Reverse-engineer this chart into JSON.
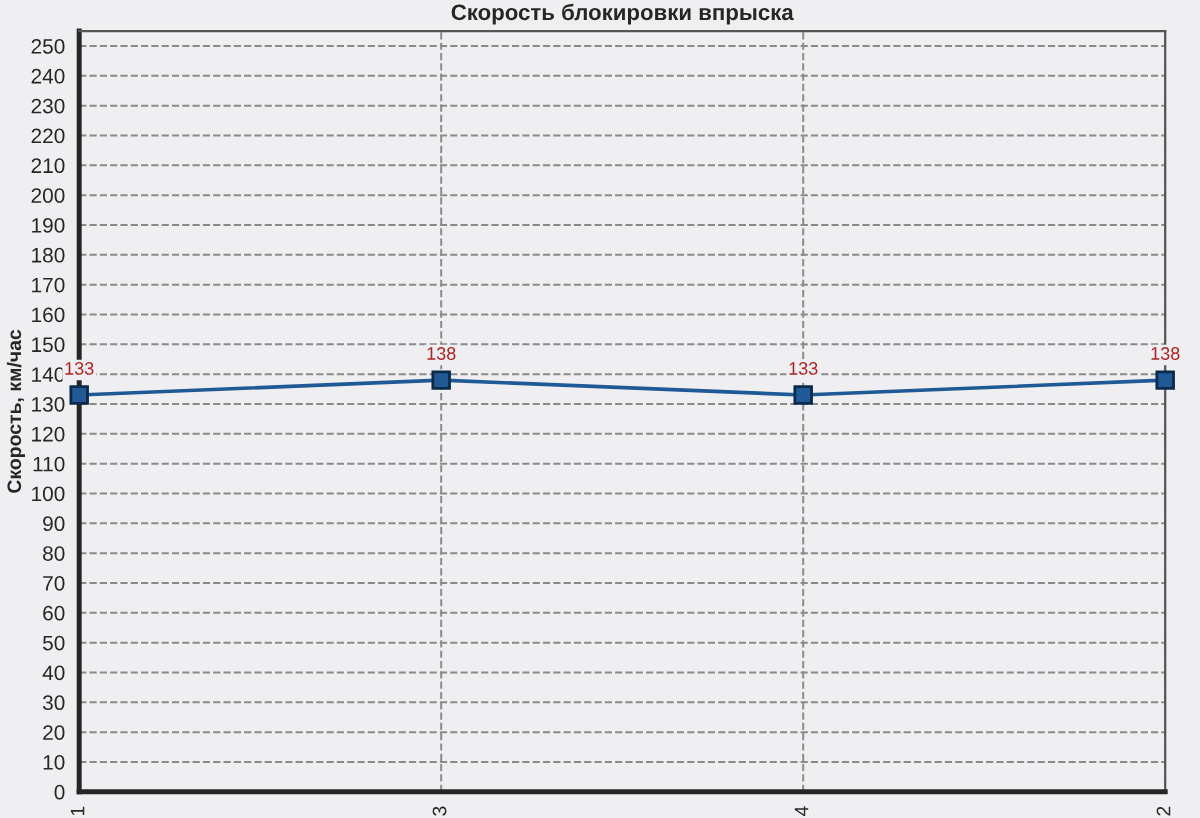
{
  "chart_data": {
    "type": "line",
    "title": "Скорость блокировки впрыска",
    "ylabel": "Скорость, км/час",
    "categories": [
      "1",
      "3",
      "4",
      "2"
    ],
    "series": [
      {
        "color": "#1f5a96",
        "values": [
          133,
          138,
          133,
          138
        ]
      }
    ],
    "ylim": [
      0,
      255
    ],
    "yticks": [
      0,
      10,
      20,
      30,
      40,
      50,
      60,
      70,
      80,
      90,
      100,
      110,
      120,
      130,
      140,
      150,
      160,
      170,
      180,
      190,
      200,
      210,
      220,
      230,
      240,
      250
    ],
    "grid": true,
    "marker": "square",
    "line_style": "solid",
    "data_labels": true
  }
}
